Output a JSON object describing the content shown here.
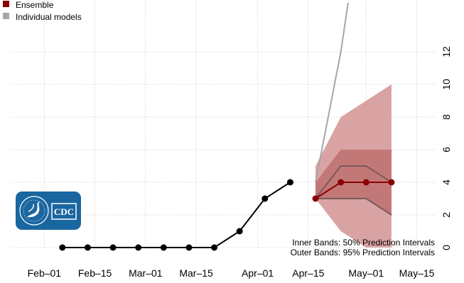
{
  "chart_data": {
    "type": "line",
    "legend": {
      "placement": "top-left",
      "entries": [
        {
          "label": "Ensemble",
          "color": "#8b0000"
        },
        {
          "label": "Individual models",
          "color": "#a6a6a6"
        }
      ]
    },
    "x_axis": {
      "type": "date",
      "ticks": [
        "2021-02-01",
        "2021-02-15",
        "2021-03-01",
        "2021-03-15",
        "2021-04-01",
        "2021-04-15",
        "2021-05-01",
        "2021-05-15"
      ],
      "tick_labels": [
        "Feb–01",
        "Feb–15",
        "Mar–01",
        "Mar–15",
        "Apr–01",
        "Apr–15",
        "May–01",
        "May–15"
      ],
      "range": [
        "2021-01-28",
        "2021-05-20"
      ]
    },
    "y_axis": {
      "position": "right",
      "ticks": [
        0,
        2,
        4,
        6,
        8,
        10,
        12
      ],
      "range": [
        0,
        13.5
      ]
    },
    "grid": true,
    "observed": {
      "color": "#000000",
      "x": [
        "2021-02-06",
        "2021-02-13",
        "2021-02-20",
        "2021-02-27",
        "2021-03-06",
        "2021-03-13",
        "2021-03-20",
        "2021-03-27",
        "2021-04-03",
        "2021-04-10"
      ],
      "y": [
        0,
        0,
        0,
        0,
        0,
        0,
        0,
        1,
        3,
        4
      ]
    },
    "ensemble": {
      "color": "#8b0000",
      "x": [
        "2021-04-17",
        "2021-04-24",
        "2021-05-01",
        "2021-05-08"
      ],
      "median": [
        3,
        4,
        4,
        4
      ],
      "inner_band": {
        "label": "50% Prediction Intervals",
        "lower": [
          3,
          3,
          3,
          2
        ],
        "upper": [
          4,
          6,
          6,
          6
        ]
      },
      "outer_band": {
        "label": "95% Prediction Intervals",
        "lower": [
          3,
          1,
          0,
          0
        ],
        "upper": [
          5,
          8,
          9,
          10
        ]
      },
      "band_inner_lines": {
        "lower": [
          3,
          3,
          3,
          2
        ],
        "upper": [
          3,
          5,
          5,
          4
        ]
      }
    },
    "individual_models": [
      {
        "x": [
          "2021-04-17",
          "2021-04-24",
          "2021-04-26"
        ],
        "y": [
          4,
          12,
          15
        ]
      }
    ],
    "annotations": [
      "Inner Bands: 50% Prediction Intervals",
      "Outer Bands: 95% Prediction Intervals"
    ]
  },
  "logo": {
    "text": "CDC",
    "background": "#1a66a1",
    "seal_text": "DEPARTMENT OF HEALTH & HUMAN SERVICES • USA"
  },
  "colors": {
    "outer_band": "#d9a3a3",
    "inner_band": "#c37878",
    "band_line": "#7a5a5a",
    "grid": "#cccccc"
  }
}
